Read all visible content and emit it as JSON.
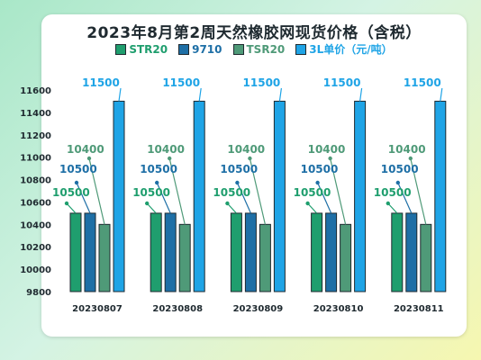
{
  "chart_data": {
    "type": "bar",
    "title": "2023年8月第2周天然橡胶网现货价格（含税）",
    "categories": [
      "20230807",
      "20230808",
      "20230809",
      "20230810",
      "20230811"
    ],
    "series": [
      {
        "name": "STR20",
        "color": "#1f9e6e",
        "values": [
          10500,
          10500,
          10500,
          10500,
          10500
        ]
      },
      {
        "name": "9710",
        "color": "#1e6fa6",
        "values": [
          10500,
          10500,
          10500,
          10500,
          10500
        ]
      },
      {
        "name": "TSR20",
        "color": "#4f9a78",
        "values": [
          10400,
          10400,
          10400,
          10400,
          10400
        ]
      },
      {
        "name": "3L单价（元/吨）",
        "color": "#1fa4e6",
        "values": [
          11500,
          11500,
          11500,
          11500,
          11500
        ]
      }
    ],
    "ylim": [
      9800,
      11600
    ],
    "yticks": [
      9800,
      10000,
      10200,
      10400,
      10600,
      10800,
      11000,
      11200,
      11400,
      11600
    ],
    "grid": false,
    "legend_position": "top"
  }
}
